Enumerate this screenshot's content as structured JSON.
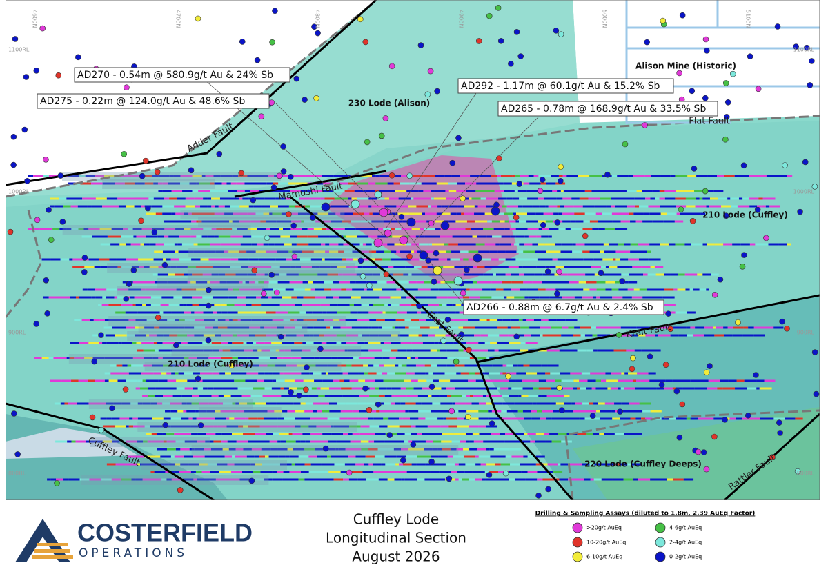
{
  "map": {
    "grid_labels": {
      "northings": [
        "4600N",
        "4700N",
        "4800N",
        "4900N",
        "5000N",
        "5100N"
      ],
      "levels": [
        "1100RL",
        "1000RL",
        "900RL",
        "800RL"
      ]
    },
    "callouts": [
      "AD270 - 0.54m @ 580.9g/t Au & 24% Sb",
      "AD275 - 0.22m @ 124.0g/t Au & 48.6% Sb",
      "AD292 - 1.17m @ 60.1g/t Au & 15.2% Sb",
      "AD265 - 0.78m @ 168.9g/t Au & 33.5% Sb",
      "AD266 - 0.88m @ 6.7g/t Au & 2.4% Sb"
    ],
    "lodes": [
      "Alison Mine (Historic)",
      "230 Lode (Alison)",
      "210 Lode (Cuffley)",
      "210 Lode (Cuffley)",
      "220 Lode (Cuffley Deeps)"
    ],
    "faults": [
      "Adder Fault",
      "Flat Fault",
      "Mamushi Fault",
      "East Fault",
      "Krait Fault",
      "Cuffley Fault",
      "Rattler Fault"
    ]
  },
  "footer": {
    "logo": {
      "name": "COSTERFIELD",
      "sub": "OPERATIONS"
    },
    "title": [
      "Cuffley Lode",
      "Longitudinal Section",
      "August 2026"
    ],
    "legend": {
      "title": "Drilling & Sampling Assays (diluted to 1.8m, 2.39 AuEq Factor)",
      "items": [
        ">20g/t AuEq",
        "4-6g/t AuEq",
        "10-20g/t AuEq",
        "2-4g/t AuEq",
        "6-10g/t AuEq",
        "0-2g/t AuEq"
      ]
    }
  }
}
